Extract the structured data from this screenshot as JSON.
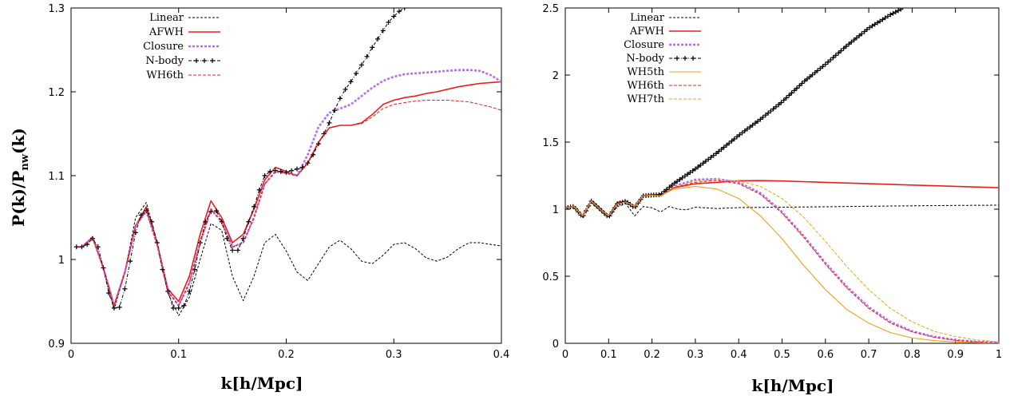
{
  "shared": {
    "ylabel": "P(k)/P",
    "ylabel_sub": "nw",
    "ylabel_tail": "(k)",
    "xlabel": "k[h/Mpc]"
  },
  "colors": {
    "linear": "#000000",
    "afwh": "#e8201b",
    "closure": "#b86cf2",
    "nbody": "#000000",
    "wh5th": "#f0a018",
    "wh6th": "#e8201b",
    "wh7th": "#f0a018"
  },
  "chart_data": [
    {
      "type": "line",
      "xlim": [
        0,
        0.4
      ],
      "ylim": [
        0.9,
        1.3
      ],
      "xticks": [
        "0",
        "0.1",
        "0.2",
        "0.3",
        "0.4"
      ],
      "yticks": [
        "0.9",
        "1",
        "1.1",
        "1.2",
        "1.3"
      ],
      "legend": [
        "Linear",
        "AFWH",
        "Closure",
        "N-body",
        "WH6th"
      ],
      "series": [
        {
          "name": "Linear",
          "x": [
            0.005,
            0.01,
            0.02,
            0.03,
            0.04,
            0.05,
            0.06,
            0.07,
            0.08,
            0.09,
            0.1,
            0.11,
            0.12,
            0.13,
            0.14,
            0.15,
            0.16,
            0.17,
            0.18,
            0.19,
            0.2,
            0.21,
            0.22,
            0.23,
            0.24,
            0.25,
            0.26,
            0.27,
            0.28,
            0.29,
            0.3,
            0.31,
            0.32,
            0.33,
            0.34,
            0.35,
            0.36,
            0.37,
            0.38,
            0.39,
            0.4
          ],
          "y": [
            1.015,
            1.015,
            1.027,
            0.99,
            0.94,
            0.985,
            1.05,
            1.068,
            1.02,
            0.96,
            0.933,
            0.955,
            1.0,
            1.043,
            1.035,
            0.98,
            0.951,
            0.98,
            1.02,
            1.03,
            1.01,
            0.985,
            0.975,
            0.995,
            1.015,
            1.023,
            1.013,
            0.998,
            0.995,
            1.005,
            1.018,
            1.02,
            1.013,
            1.002,
            0.998,
            1.003,
            1.013,
            1.02,
            1.02,
            1.018,
            1.016
          ]
        },
        {
          "name": "AFWH",
          "x": [
            0.005,
            0.01,
            0.02,
            0.03,
            0.04,
            0.05,
            0.06,
            0.07,
            0.08,
            0.09,
            0.1,
            0.11,
            0.12,
            0.13,
            0.14,
            0.15,
            0.16,
            0.17,
            0.18,
            0.19,
            0.2,
            0.21,
            0.22,
            0.23,
            0.24,
            0.25,
            0.26,
            0.27,
            0.28,
            0.29,
            0.3,
            0.31,
            0.32,
            0.33,
            0.34,
            0.35,
            0.36,
            0.37,
            0.38,
            0.39,
            0.4
          ],
          "y": [
            1.015,
            1.015,
            1.027,
            0.99,
            0.945,
            0.985,
            1.04,
            1.063,
            1.02,
            0.965,
            0.95,
            0.98,
            1.03,
            1.07,
            1.05,
            1.02,
            1.03,
            1.06,
            1.095,
            1.11,
            1.105,
            1.1,
            1.115,
            1.14,
            1.157,
            1.16,
            1.16,
            1.163,
            1.173,
            1.185,
            1.19,
            1.193,
            1.195,
            1.198,
            1.2,
            1.203,
            1.206,
            1.208,
            1.21,
            1.211,
            1.212
          ]
        },
        {
          "name": "Closure",
          "x": [
            0.005,
            0.01,
            0.02,
            0.03,
            0.04,
            0.05,
            0.06,
            0.07,
            0.08,
            0.09,
            0.1,
            0.11,
            0.12,
            0.13,
            0.14,
            0.15,
            0.16,
            0.17,
            0.18,
            0.19,
            0.2,
            0.21,
            0.22,
            0.23,
            0.24,
            0.25,
            0.26,
            0.27,
            0.28,
            0.29,
            0.3,
            0.31,
            0.32,
            0.33,
            0.34,
            0.35,
            0.36,
            0.37,
            0.38,
            0.39,
            0.4
          ],
          "y": [
            1.015,
            1.015,
            1.026,
            0.99,
            0.945,
            0.985,
            1.04,
            1.058,
            1.018,
            0.962,
            0.945,
            0.972,
            1.02,
            1.06,
            1.045,
            1.015,
            1.02,
            1.05,
            1.09,
            1.105,
            1.103,
            1.1,
            1.125,
            1.158,
            1.175,
            1.18,
            1.185,
            1.195,
            1.205,
            1.213,
            1.218,
            1.221,
            1.222,
            1.223,
            1.224,
            1.225,
            1.226,
            1.226,
            1.225,
            1.22,
            1.212
          ]
        },
        {
          "name": "N-body",
          "x": [
            0.005,
            0.01,
            0.015,
            0.02,
            0.025,
            0.03,
            0.035,
            0.04,
            0.045,
            0.05,
            0.055,
            0.06,
            0.065,
            0.07,
            0.075,
            0.08,
            0.085,
            0.09,
            0.095,
            0.1,
            0.105,
            0.11,
            0.115,
            0.12,
            0.125,
            0.13,
            0.135,
            0.14,
            0.145,
            0.15,
            0.155,
            0.16,
            0.165,
            0.17,
            0.175,
            0.18,
            0.185,
            0.19,
            0.195,
            0.2,
            0.205,
            0.21,
            0.215,
            0.22,
            0.225,
            0.23,
            0.235,
            0.24,
            0.245,
            0.25,
            0.255,
            0.26,
            0.265,
            0.27,
            0.275,
            0.28,
            0.285,
            0.29,
            0.295,
            0.3,
            0.305,
            0.31,
            0.315
          ],
          "y": [
            1.015,
            1.015,
            1.018,
            1.025,
            1.015,
            0.99,
            0.96,
            0.942,
            0.943,
            0.965,
            0.998,
            1.032,
            1.053,
            1.058,
            1.045,
            1.02,
            0.988,
            0.962,
            0.942,
            0.942,
            0.945,
            0.962,
            0.988,
            1.02,
            1.045,
            1.057,
            1.058,
            1.045,
            1.025,
            1.011,
            1.011,
            1.025,
            1.045,
            1.063,
            1.083,
            1.1,
            1.105,
            1.106,
            1.105,
            1.104,
            1.106,
            1.108,
            1.11,
            1.115,
            1.125,
            1.138,
            1.15,
            1.163,
            1.178,
            1.192,
            1.203,
            1.212,
            1.222,
            1.232,
            1.242,
            1.253,
            1.263,
            1.273,
            1.283,
            1.29,
            1.296,
            1.3,
            1.303
          ]
        },
        {
          "name": "WH6th",
          "x": [
            0.005,
            0.01,
            0.02,
            0.03,
            0.04,
            0.05,
            0.06,
            0.07,
            0.08,
            0.09,
            0.1,
            0.11,
            0.12,
            0.13,
            0.14,
            0.15,
            0.16,
            0.17,
            0.18,
            0.19,
            0.2,
            0.21,
            0.22,
            0.23,
            0.24,
            0.25,
            0.26,
            0.27,
            0.28,
            0.29,
            0.3,
            0.31,
            0.32,
            0.33,
            0.34,
            0.35,
            0.36,
            0.37,
            0.38,
            0.39,
            0.4
          ],
          "y": [
            1.015,
            1.015,
            1.026,
            0.99,
            0.945,
            0.985,
            1.04,
            1.058,
            1.018,
            0.962,
            0.945,
            0.972,
            1.02,
            1.06,
            1.045,
            1.015,
            1.02,
            1.05,
            1.09,
            1.105,
            1.103,
            1.1,
            1.115,
            1.14,
            1.157,
            1.16,
            1.16,
            1.162,
            1.17,
            1.18,
            1.185,
            1.187,
            1.189,
            1.19,
            1.19,
            1.19,
            1.189,
            1.188,
            1.185,
            1.182,
            1.178
          ]
        }
      ]
    },
    {
      "type": "line",
      "xlim": [
        0,
        1
      ],
      "ylim": [
        0,
        2.5
      ],
      "xticks": [
        "0",
        "0.1",
        "0.2",
        "0.3",
        "0.4",
        "0.5",
        "0.6",
        "0.7",
        "0.8",
        "0.9",
        "1"
      ],
      "yticks": [
        "0",
        "0.5",
        "1",
        "1.5",
        "2",
        "2.5"
      ],
      "legend": [
        "Linear",
        "AFWH",
        "Closure",
        "N-body",
        "WH5th",
        "WH6th",
        "WH7th"
      ],
      "series": [
        {
          "name": "Linear",
          "x": [
            0.0,
            0.02,
            0.04,
            0.06,
            0.08,
            0.1,
            0.12,
            0.14,
            0.16,
            0.18,
            0.2,
            0.22,
            0.24,
            0.26,
            0.28,
            0.3,
            0.35,
            0.4,
            0.5,
            0.6,
            0.7,
            0.8,
            0.9,
            1.0
          ],
          "y": [
            1.01,
            1.02,
            0.95,
            1.06,
            1.0,
            0.94,
            1.02,
            1.04,
            0.95,
            1.02,
            1.01,
            0.98,
            1.02,
            1.0,
            0.995,
            1.015,
            1.005,
            1.012,
            1.015,
            1.018,
            1.022,
            1.025,
            1.028,
            1.03
          ]
        },
        {
          "name": "AFWH",
          "x": [
            0.0,
            0.02,
            0.04,
            0.06,
            0.08,
            0.1,
            0.12,
            0.14,
            0.16,
            0.18,
            0.2,
            0.22,
            0.25,
            0.3,
            0.35,
            0.4,
            0.45,
            0.5,
            0.6,
            0.7,
            0.8,
            0.9,
            1.0
          ],
          "y": [
            1.01,
            1.02,
            0.95,
            1.06,
            1.0,
            0.95,
            1.05,
            1.06,
            1.02,
            1.1,
            1.11,
            1.1,
            1.16,
            1.19,
            1.2,
            1.212,
            1.213,
            1.21,
            1.2,
            1.19,
            1.18,
            1.17,
            1.16
          ]
        },
        {
          "name": "Closure",
          "x": [
            0.0,
            0.02,
            0.04,
            0.06,
            0.08,
            0.1,
            0.12,
            0.14,
            0.16,
            0.18,
            0.2,
            0.22,
            0.25,
            0.3,
            0.35,
            0.4,
            0.45,
            0.5,
            0.55,
            0.6,
            0.65,
            0.7,
            0.75,
            0.8,
            0.85,
            0.9,
            0.95,
            1.0
          ],
          "y": [
            1.01,
            1.02,
            0.95,
            1.06,
            1.0,
            0.95,
            1.04,
            1.055,
            1.02,
            1.1,
            1.105,
            1.1,
            1.17,
            1.22,
            1.225,
            1.2,
            1.12,
            0.98,
            0.8,
            0.6,
            0.42,
            0.27,
            0.16,
            0.09,
            0.05,
            0.025,
            0.012,
            0.005
          ]
        },
        {
          "name": "N-body",
          "x": [
            0.0,
            0.02,
            0.04,
            0.06,
            0.08,
            0.1,
            0.12,
            0.14,
            0.16,
            0.18,
            0.2,
            0.22,
            0.25,
            0.3,
            0.35,
            0.4,
            0.45,
            0.5,
            0.55,
            0.6,
            0.65,
            0.7,
            0.75,
            0.78
          ],
          "y": [
            1.01,
            1.02,
            0.94,
            1.06,
            1.0,
            0.94,
            1.04,
            1.06,
            1.01,
            1.1,
            1.105,
            1.11,
            1.19,
            1.3,
            1.42,
            1.55,
            1.67,
            1.8,
            1.95,
            2.08,
            2.22,
            2.35,
            2.45,
            2.5
          ]
        },
        {
          "name": "WH5th",
          "x": [
            0.0,
            0.02,
            0.04,
            0.06,
            0.08,
            0.1,
            0.12,
            0.14,
            0.16,
            0.18,
            0.2,
            0.22,
            0.25,
            0.3,
            0.35,
            0.4,
            0.45,
            0.5,
            0.55,
            0.6,
            0.65,
            0.7,
            0.75,
            0.8,
            0.85,
            0.9,
            0.95,
            1.0
          ],
          "y": [
            1.01,
            1.02,
            0.95,
            1.06,
            1.0,
            0.95,
            1.04,
            1.055,
            1.02,
            1.1,
            1.105,
            1.1,
            1.15,
            1.17,
            1.15,
            1.08,
            0.95,
            0.78,
            0.58,
            0.4,
            0.25,
            0.15,
            0.08,
            0.04,
            0.02,
            0.01,
            0.005,
            0.002
          ]
        },
        {
          "name": "WH6th",
          "x": [
            0.0,
            0.02,
            0.04,
            0.06,
            0.08,
            0.1,
            0.12,
            0.14,
            0.16,
            0.18,
            0.2,
            0.22,
            0.25,
            0.3,
            0.35,
            0.4,
            0.45,
            0.5,
            0.55,
            0.6,
            0.65,
            0.7,
            0.75,
            0.8,
            0.85,
            0.9,
            0.95,
            1.0
          ],
          "y": [
            1.01,
            1.02,
            0.95,
            1.06,
            1.0,
            0.95,
            1.04,
            1.055,
            1.02,
            1.1,
            1.105,
            1.1,
            1.16,
            1.2,
            1.215,
            1.19,
            1.11,
            0.97,
            0.79,
            0.59,
            0.41,
            0.26,
            0.15,
            0.085,
            0.045,
            0.022,
            0.01,
            0.004
          ]
        },
        {
          "name": "WH7th",
          "x": [
            0.0,
            0.02,
            0.04,
            0.06,
            0.08,
            0.1,
            0.12,
            0.14,
            0.16,
            0.18,
            0.2,
            0.22,
            0.25,
            0.3,
            0.35,
            0.4,
            0.45,
            0.5,
            0.55,
            0.6,
            0.65,
            0.7,
            0.75,
            0.8,
            0.85,
            0.9,
            0.95,
            1.0
          ],
          "y": [
            1.01,
            1.02,
            0.95,
            1.06,
            1.0,
            0.95,
            1.04,
            1.055,
            1.02,
            1.1,
            1.105,
            1.1,
            1.165,
            1.21,
            1.22,
            1.21,
            1.17,
            1.08,
            0.94,
            0.76,
            0.57,
            0.4,
            0.26,
            0.16,
            0.09,
            0.05,
            0.025,
            0.012
          ]
        }
      ]
    }
  ]
}
